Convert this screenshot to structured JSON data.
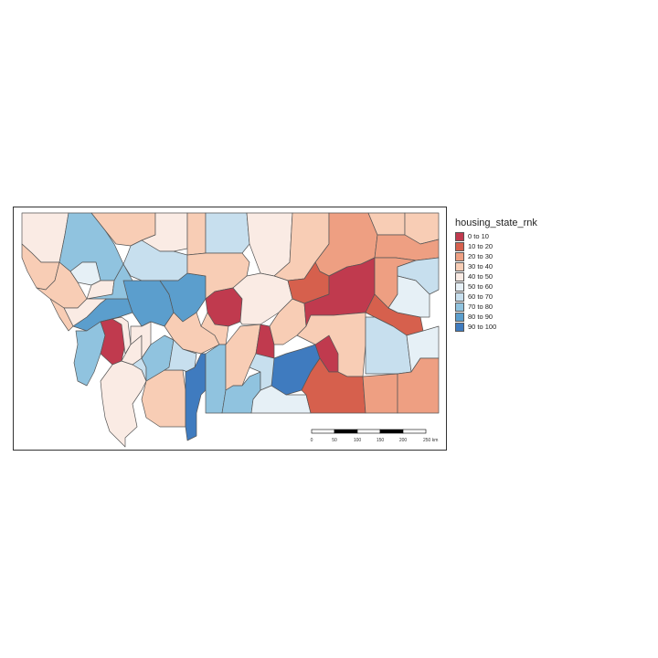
{
  "legend": {
    "title": "housing_state_rnk",
    "classes": [
      {
        "label": "0 to 10",
        "color": "#c03a4e"
      },
      {
        "label": "10 to 20",
        "color": "#d6604d"
      },
      {
        "label": "20 to 30",
        "color": "#ee9f82"
      },
      {
        "label": "30 to 40",
        "color": "#f8cdb5"
      },
      {
        "label": "40 to 50",
        "color": "#faebe4"
      },
      {
        "label": "50 to 60",
        "color": "#e6f0f6"
      },
      {
        "label": "60 to 70",
        "color": "#c7dfee"
      },
      {
        "label": "70 to 80",
        "color": "#90c3df"
      },
      {
        "label": "80 to 90",
        "color": "#5b9ecd"
      },
      {
        "label": "90 to 100",
        "color": "#3f7bbf"
      }
    ]
  },
  "scalebar": {
    "ticks": [
      "0",
      "50",
      "100",
      "150",
      "200",
      "250 km"
    ]
  }
}
